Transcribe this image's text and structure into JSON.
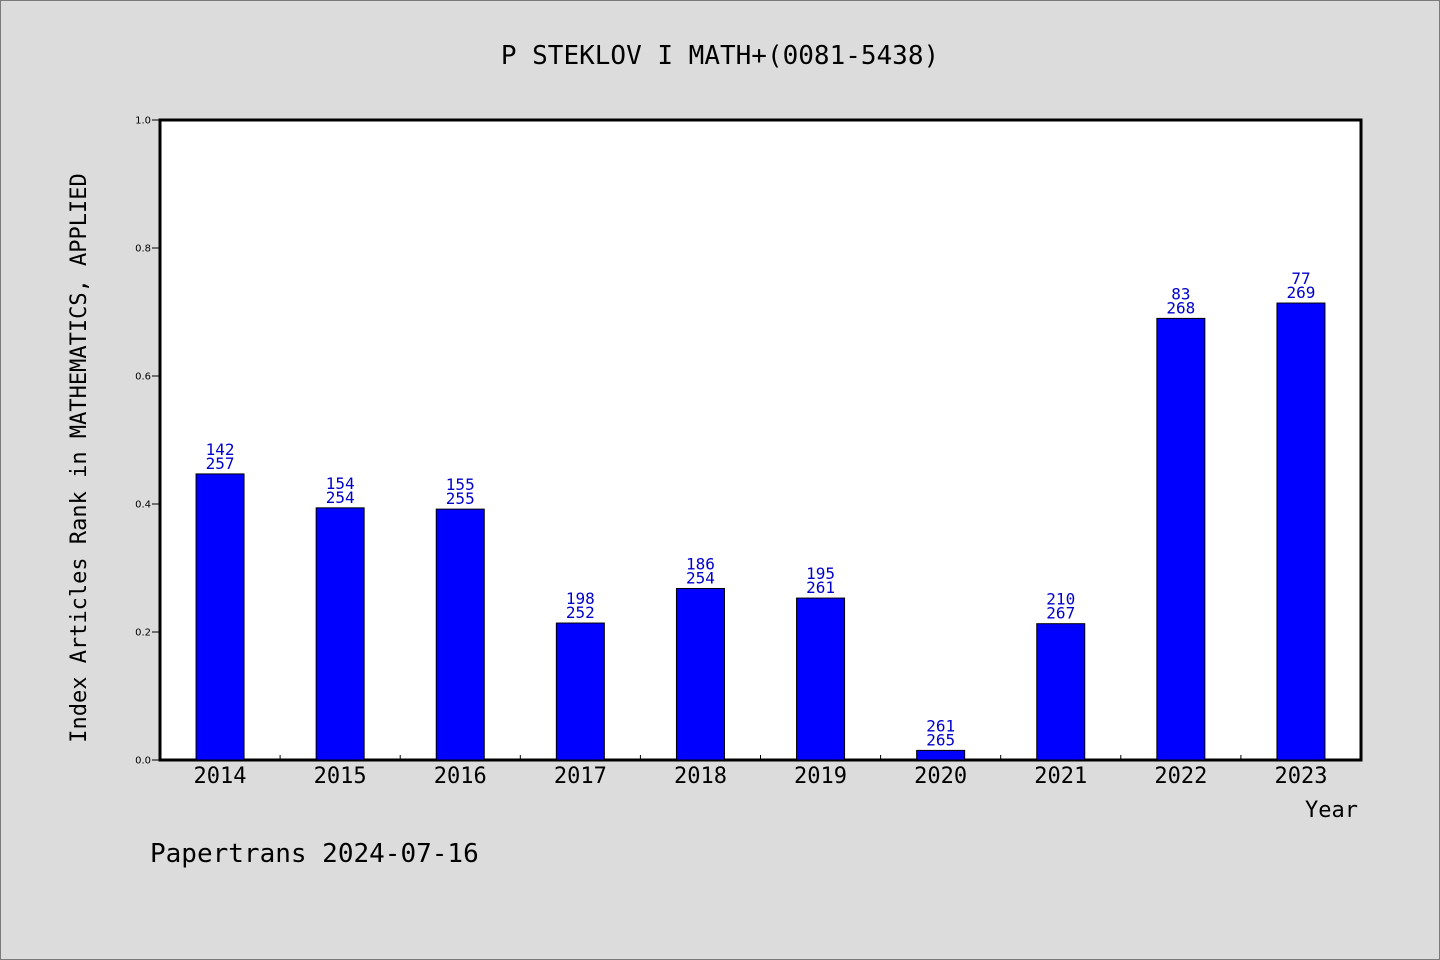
{
  "chart_data": {
    "type": "bar",
    "title": "P STEKLOV I MATH+(0081-5438)",
    "xlabel": "Year",
    "ylabel": "Index Articles Rank in MATHEMATICS, APPLIED",
    "ylim": [
      0.0,
      1.0
    ],
    "yticks": [
      "0.0",
      "0.2",
      "0.4",
      "0.6",
      "0.8",
      "1.0"
    ],
    "categories": [
      "2014",
      "2015",
      "2016",
      "2017",
      "2018",
      "2019",
      "2020",
      "2021",
      "2022",
      "2023"
    ],
    "values": [
      0.447,
      0.394,
      0.392,
      0.214,
      0.268,
      0.253,
      0.015,
      0.213,
      0.69,
      0.714
    ],
    "rank_labels": [
      "142",
      "154",
      "155",
      "198",
      "186",
      "195",
      "261",
      "210",
      "83",
      "77"
    ],
    "total_labels": [
      "257",
      "254",
      "255",
      "252",
      "254",
      "261",
      "265",
      "267",
      "268",
      "269"
    ],
    "bar_color": "#0000ff",
    "label_color": "#0000cc",
    "background_color": "#dcdcdc",
    "plot_background": "#ffffff",
    "grid": false,
    "legend": "none"
  },
  "footer": "Papertrans 2024-07-16"
}
